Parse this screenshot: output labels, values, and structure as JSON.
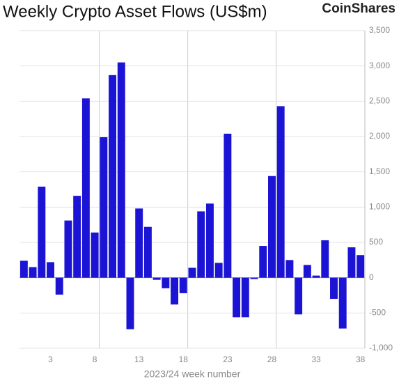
{
  "chart_data": {
    "type": "bar",
    "title": "Weekly Crypto Asset Flows (US$m)",
    "brand": "CoinShares",
    "x_label": "2023/24 week number",
    "categories": [
      null,
      null,
      null,
      3,
      null,
      null,
      null,
      null,
      8,
      null,
      null,
      null,
      null,
      13,
      null,
      null,
      null,
      null,
      18,
      null,
      null,
      null,
      null,
      23,
      null,
      null,
      null,
      null,
      28,
      null,
      null,
      null,
      null,
      33,
      null,
      null,
      null,
      null,
      38
    ],
    "values": [
      240,
      150,
      1290,
      220,
      -240,
      810,
      1160,
      2540,
      640,
      1990,
      2870,
      3050,
      -730,
      980,
      720,
      -30,
      -150,
      -380,
      -220,
      140,
      940,
      1050,
      210,
      2040,
      -560,
      -560,
      -20,
      450,
      1440,
      2430,
      250,
      -520,
      180,
      30,
      530,
      -300,
      -720,
      430,
      320
    ],
    "color": "#1c14d4",
    "ylim": [
      -1000,
      3500
    ],
    "yticks": [
      {
        "value": -1000,
        "label": "-1,000"
      },
      -500,
      0,
      500,
      {
        "value": 1000,
        "label": "1,000"
      },
      {
        "value": 1500,
        "label": "1,500"
      },
      {
        "value": 2000,
        "label": "2,000"
      },
      {
        "value": 2500,
        "label": "2,500"
      },
      {
        "value": 3000,
        "label": "3,000"
      },
      {
        "value": 3500,
        "label": "3,500"
      }
    ],
    "grid": true
  }
}
